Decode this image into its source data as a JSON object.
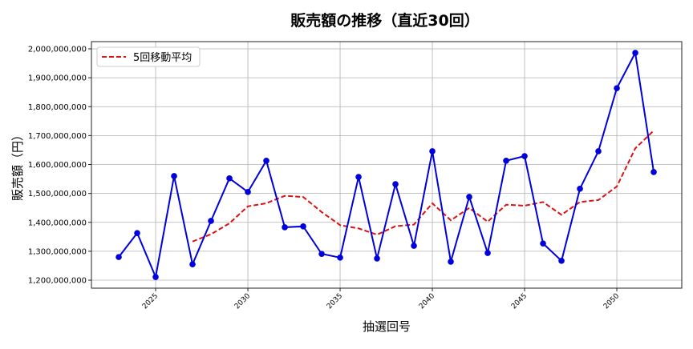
{
  "chart_data": {
    "type": "line",
    "title": "販売額の推移（直近30回）",
    "xlabel": "抽選回号",
    "ylabel": "販売額（円）",
    "x": [
      2023,
      2024,
      2025,
      2026,
      2027,
      2028,
      2029,
      2030,
      2031,
      2032,
      2033,
      2034,
      2035,
      2036,
      2037,
      2038,
      2039,
      2040,
      2041,
      2042,
      2043,
      2044,
      2045,
      2046,
      2047,
      2048,
      2049,
      2050,
      2051,
      2052
    ],
    "series": [
      {
        "values": [
          1280000000,
          1363000000,
          1211000000,
          1560000000,
          1255000000,
          1405000000,
          1552000000,
          1505000000,
          1613000000,
          1383000000,
          1386000000,
          1291000000,
          1278000000,
          1557000000,
          1275000000,
          1532000000,
          1319000000,
          1646000000,
          1264000000,
          1488000000,
          1294000000,
          1613000000,
          1629000000,
          1327000000,
          1267000000,
          1516000000,
          1646000000,
          1864000000,
          1986000000,
          1574000000
        ],
        "color": "#0000dd",
        "style": "solid-markers"
      },
      {
        "name": "5回移動平均",
        "window": 5,
        "color": "#dd1111",
        "style": "dashed"
      }
    ],
    "xlim": [
      2021.52,
      2053.52
    ],
    "ylim": [
      1172400000,
      2024900000
    ],
    "xticks": [
      "2025",
      "2030",
      "2035",
      "2040",
      "2045",
      "2050"
    ],
    "yticks": [
      "1,200,000,000",
      "1,300,000,000",
      "1,400,000,000",
      "1,500,000,000",
      "1,600,000,000",
      "1,700,000,000",
      "1,800,000,000",
      "1,900,000,000",
      "2,000,000,000"
    ],
    "grid": true,
    "legend_position": "top-left"
  }
}
